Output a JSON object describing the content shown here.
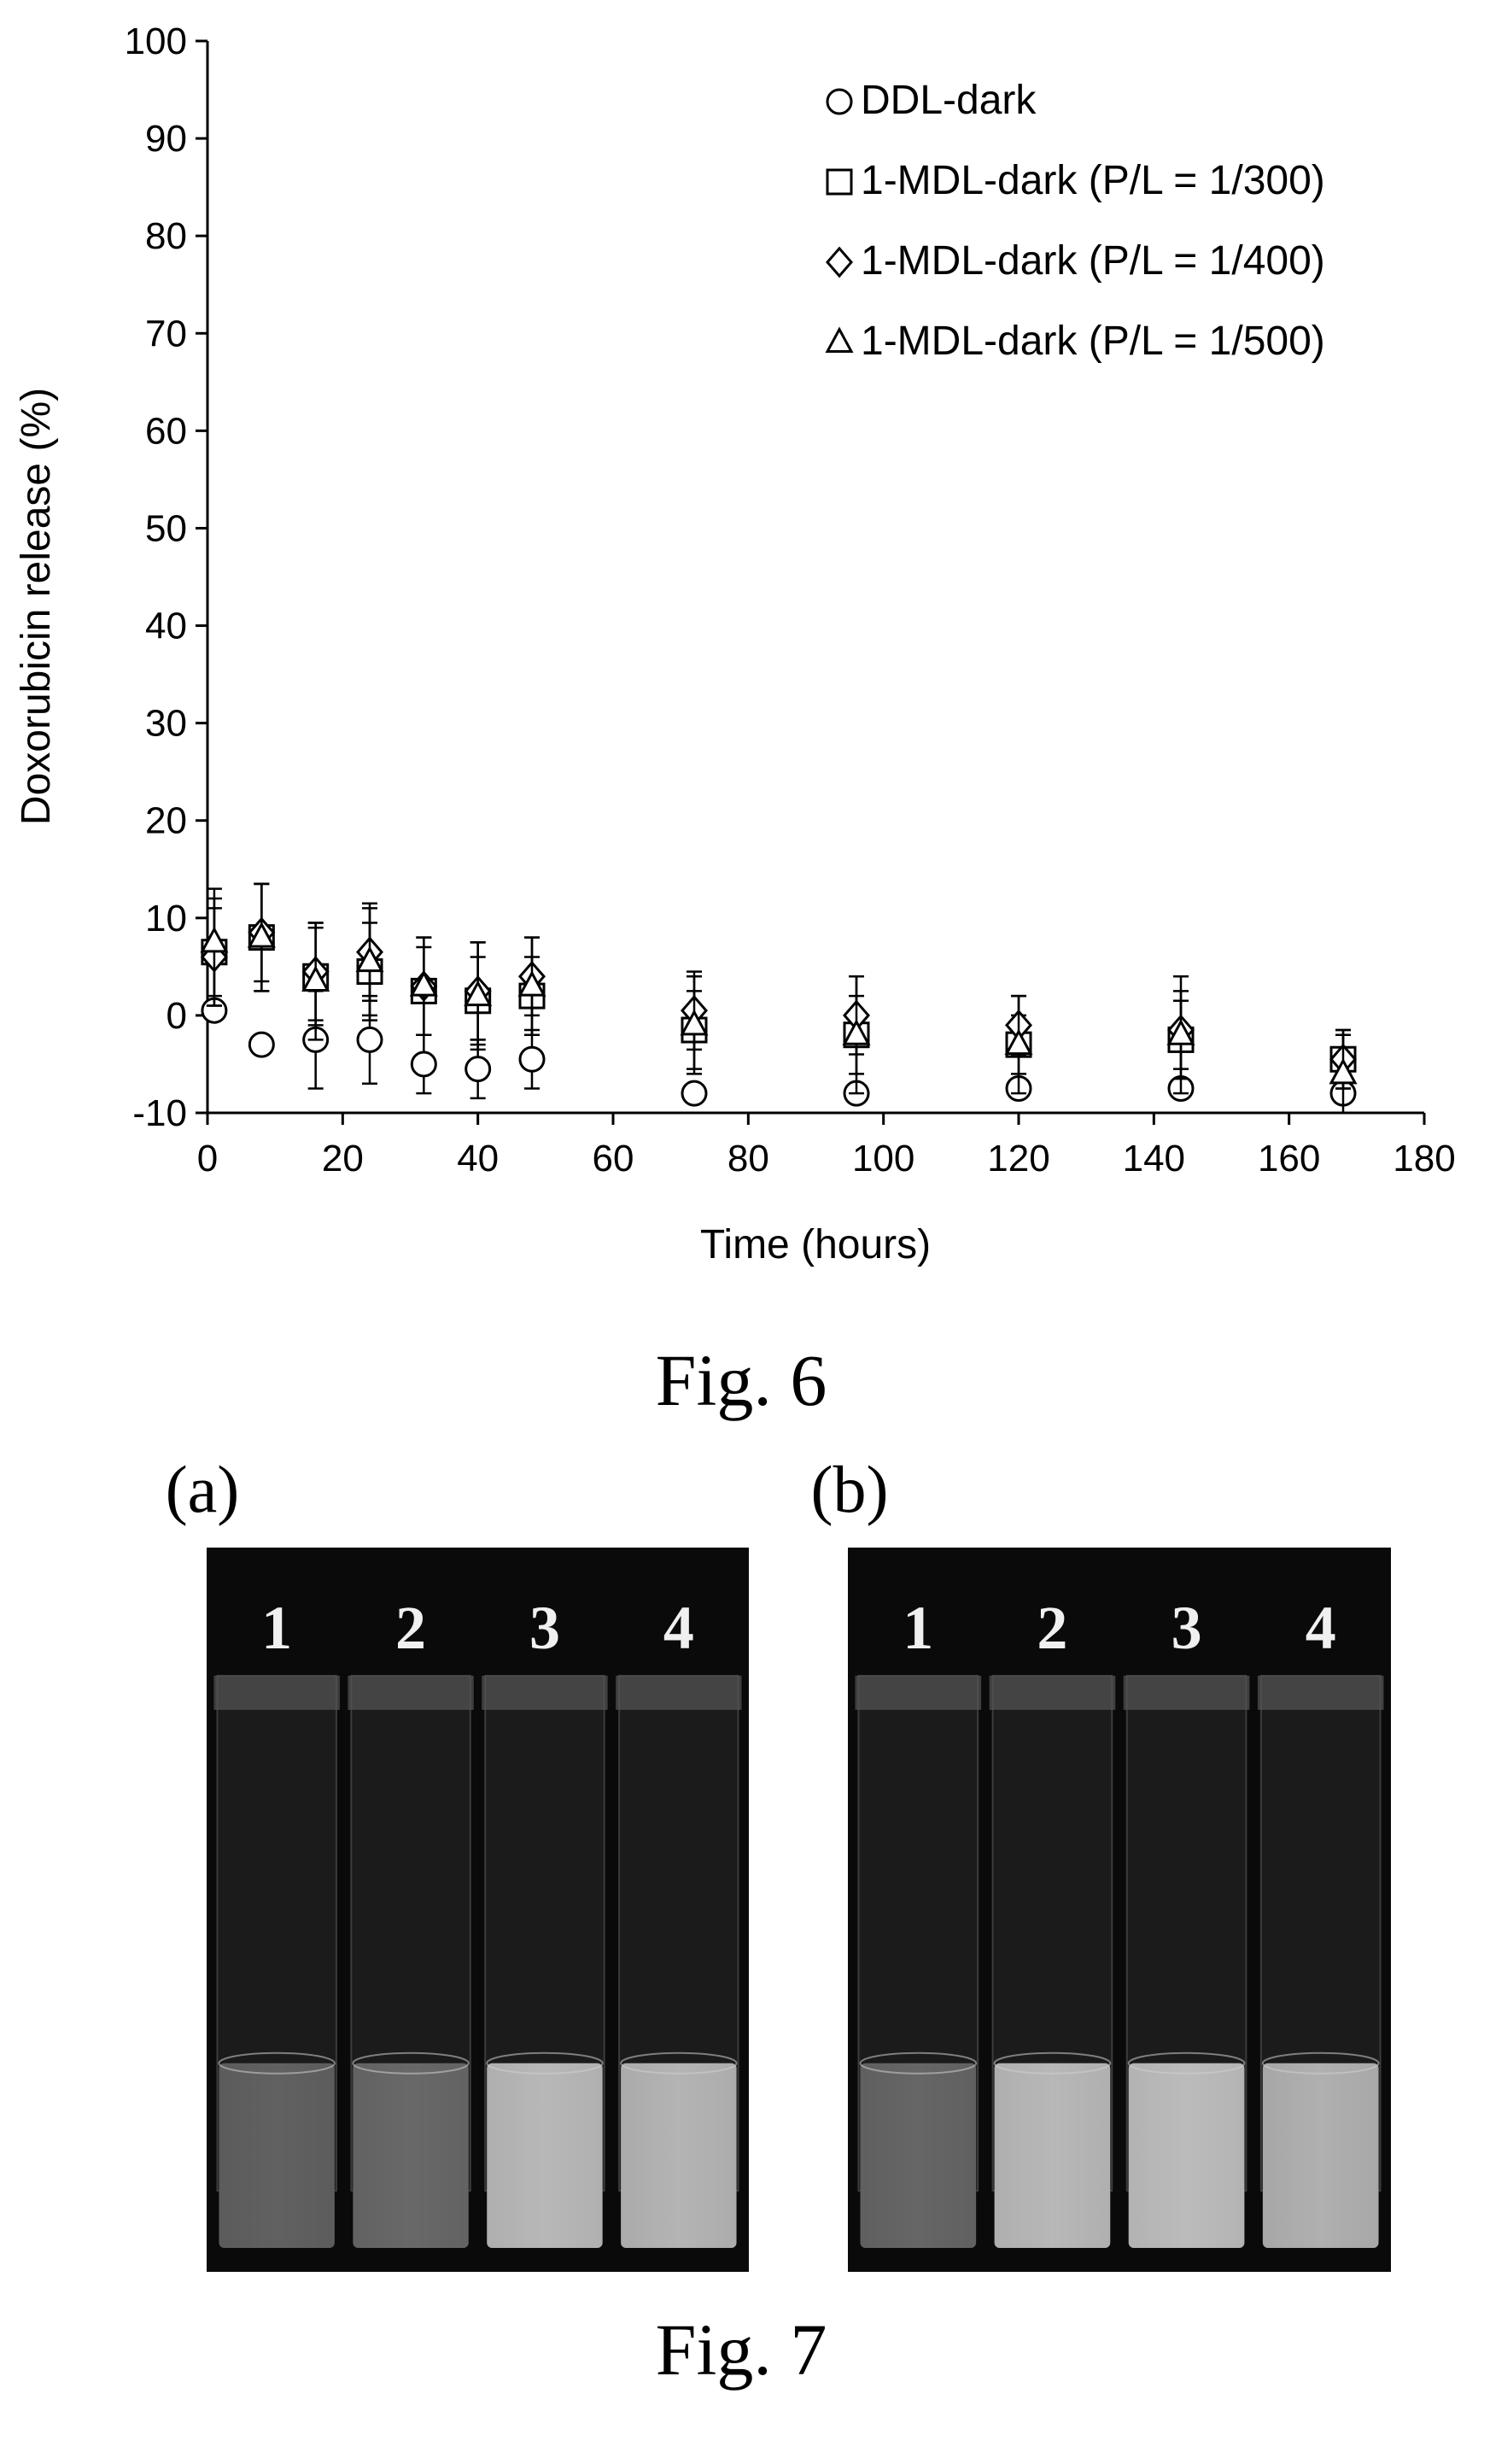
{
  "fig6": {
    "caption": "Fig. 6",
    "chart_data": {
      "type": "scatter",
      "xlabel": "Time (hours)",
      "ylabel": "Doxorubicin release (%)",
      "xlim": [
        0,
        180
      ],
      "ylim": [
        -10,
        100
      ],
      "xticks": [
        0,
        20,
        40,
        60,
        80,
        100,
        120,
        140,
        160,
        180
      ],
      "yticks": [
        -10,
        0,
        10,
        20,
        30,
        40,
        50,
        60,
        70,
        80,
        90,
        100
      ],
      "grid": false,
      "legend_position": "top-right",
      "error_bars": true,
      "series": [
        {
          "name": "DDL-dark",
          "marker": "circle",
          "x": [
            1,
            8,
            16,
            24,
            32,
            40,
            48,
            72,
            96,
            120,
            144,
            168
          ],
          "y": [
            0.5,
            -3,
            -2.5,
            -2.5,
            -5,
            -5.5,
            -4.5,
            -8,
            -8,
            -7.5,
            -7.5,
            -8
          ],
          "err": [
            0,
            0,
            5,
            4.5,
            3,
            3,
            3,
            0,
            0,
            0,
            0,
            0
          ]
        },
        {
          "name": "1-MDL-dark (P/L = 1/300)",
          "marker": "square",
          "x": [
            1,
            8,
            16,
            24,
            32,
            40,
            48,
            72,
            96,
            120,
            144,
            168
          ],
          "y": [
            6.5,
            8,
            4,
            4.5,
            2.5,
            1.5,
            2,
            -1.5,
            -2,
            -3,
            -2.5,
            -4.5
          ],
          "err": [
            5.5,
            5.5,
            5,
            5,
            4.5,
            4.5,
            4,
            4,
            4,
            3,
            4,
            3
          ]
        },
        {
          "name": "1-MDL-dark (P/L = 1/400)",
          "marker": "diamond",
          "x": [
            1,
            8,
            16,
            24,
            32,
            40,
            48,
            72,
            96,
            120,
            144,
            168
          ],
          "y": [
            6,
            8.5,
            4.5,
            6.5,
            3,
            2.5,
            4,
            0.5,
            0,
            -1,
            -1.5,
            -4.5
          ],
          "err": [
            5,
            5,
            5,
            5,
            5,
            5,
            4,
            4,
            4,
            3,
            4,
            3
          ]
        },
        {
          "name": "1-MDL-dark (P/L = 1/500)",
          "marker": "triangle",
          "x": [
            1,
            8,
            16,
            24,
            32,
            40,
            48,
            72,
            96,
            120,
            144,
            168
          ],
          "y": [
            7.5,
            8,
            3.5,
            5.5,
            3,
            2,
            3,
            -1,
            -2,
            -3,
            -2,
            -6
          ],
          "err": [
            5.5,
            5.5,
            6,
            5.5,
            5,
            5.5,
            5,
            5,
            6,
            5,
            6,
            4
          ]
        }
      ]
    }
  },
  "fig7": {
    "caption": "Fig. 7",
    "panels": [
      {
        "label": "(a)",
        "tube_labels": [
          "1",
          "2",
          "3",
          "4"
        ],
        "brightness": [
          0.22,
          0.25,
          0.62,
          0.6
        ]
      },
      {
        "label": "(b)",
        "tube_labels": [
          "1",
          "2",
          "3",
          "4"
        ],
        "brightness": [
          0.24,
          0.62,
          0.64,
          0.58
        ]
      }
    ]
  }
}
